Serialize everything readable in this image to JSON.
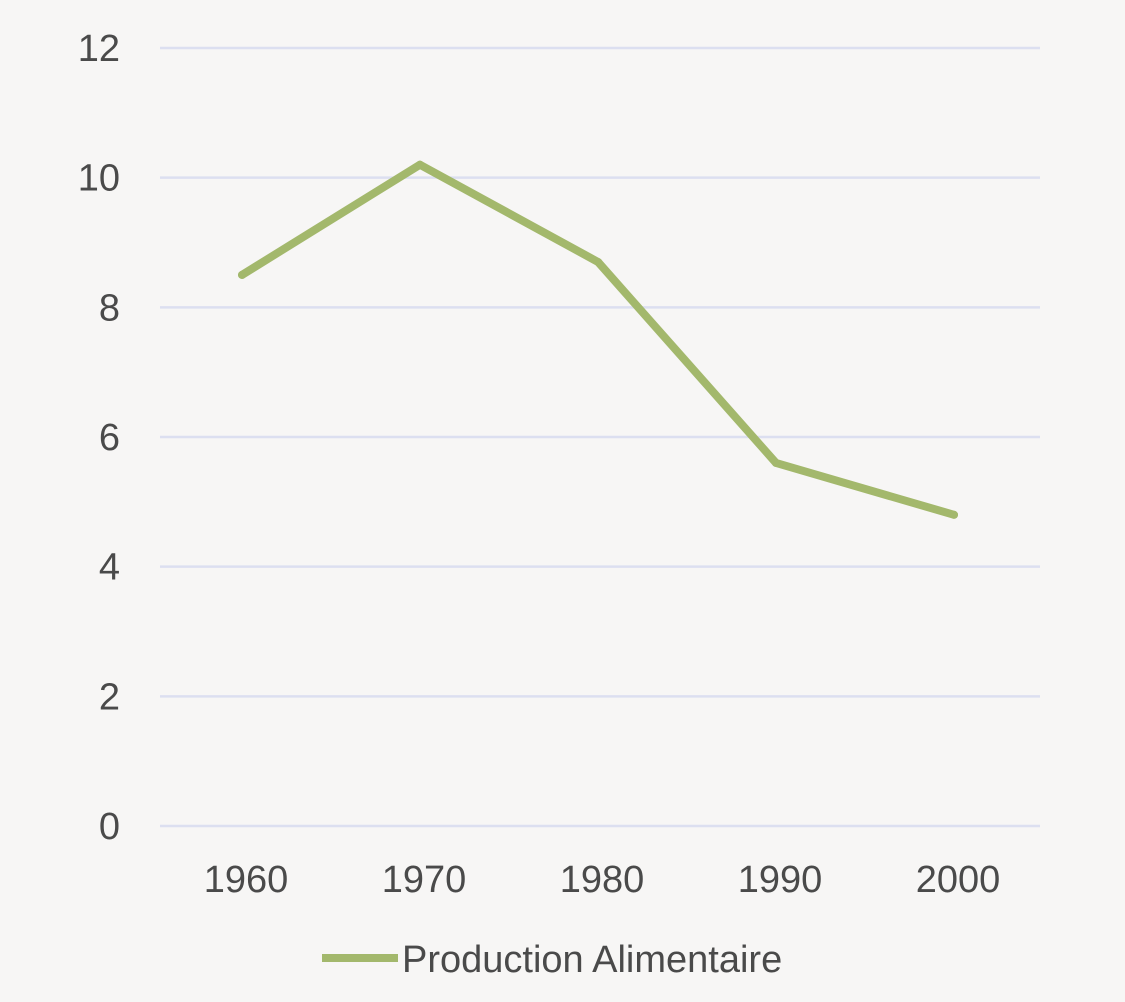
{
  "chart_data": {
    "type": "line",
    "categories": [
      "1960",
      "1970",
      "1980",
      "1990",
      "2000"
    ],
    "series": [
      {
        "name": "Production Alimentaire",
        "values": [
          8.5,
          10.2,
          8.7,
          5.6,
          4.8
        ],
        "color": "#a3b86c"
      }
    ],
    "ylim": [
      0,
      12
    ],
    "yticks": [
      "0",
      "2",
      "4",
      "6",
      "8",
      "10",
      "12"
    ],
    "grid": true,
    "legend": "bottom-center"
  }
}
